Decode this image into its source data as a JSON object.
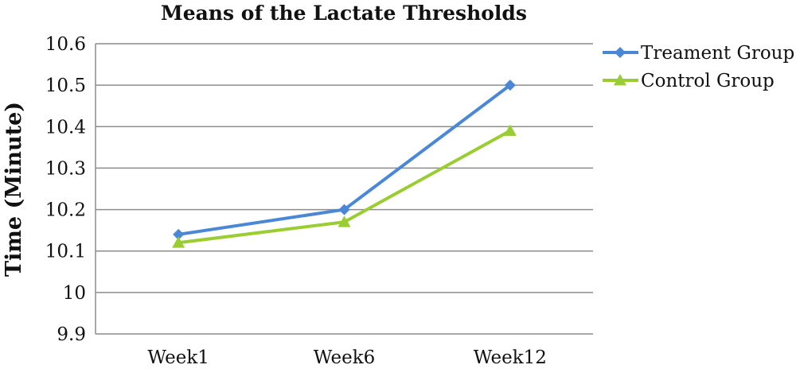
{
  "chart_data": {
    "type": "line",
    "title": "Means of the Lactate Thresholds",
    "xlabel": "",
    "ylabel": "Time (Minute)",
    "categories": [
      "Week1",
      "Week6",
      "Week12"
    ],
    "series": [
      {
        "name": "Treament Group",
        "values": [
          10.14,
          10.2,
          10.5
        ],
        "color": "#4A87D6",
        "marker": "diamond"
      },
      {
        "name": "Control Group",
        "values": [
          10.12,
          10.17,
          10.39
        ],
        "color": "#9ACD32",
        "marker": "triangle"
      }
    ],
    "ylim": [
      9.9,
      10.6
    ],
    "yticks": [
      "9.9",
      "10",
      "10.1",
      "10.2",
      "10.3",
      "10.4",
      "10.5",
      "10.6"
    ],
    "grid": true,
    "legend_position": "top-right"
  }
}
